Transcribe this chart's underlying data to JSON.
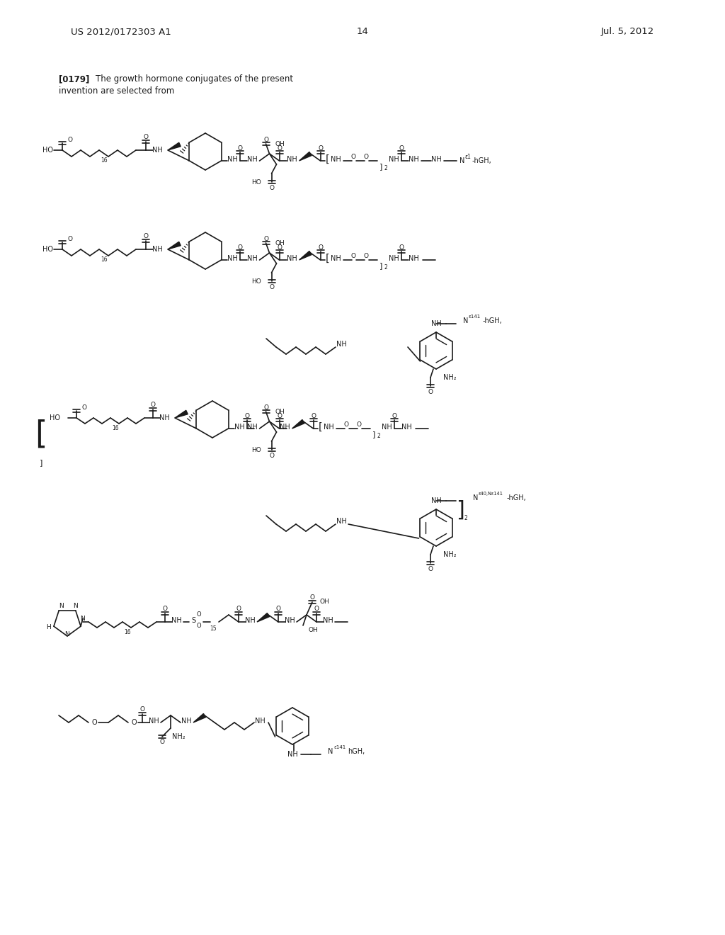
{
  "header_left": "US 2012/0172303 A1",
  "header_right": "Jul. 5, 2012",
  "page_number": "14",
  "bg_color": "#ffffff",
  "text_color": "#1a1a1a",
  "fig_width": 10.24,
  "fig_height": 13.2
}
